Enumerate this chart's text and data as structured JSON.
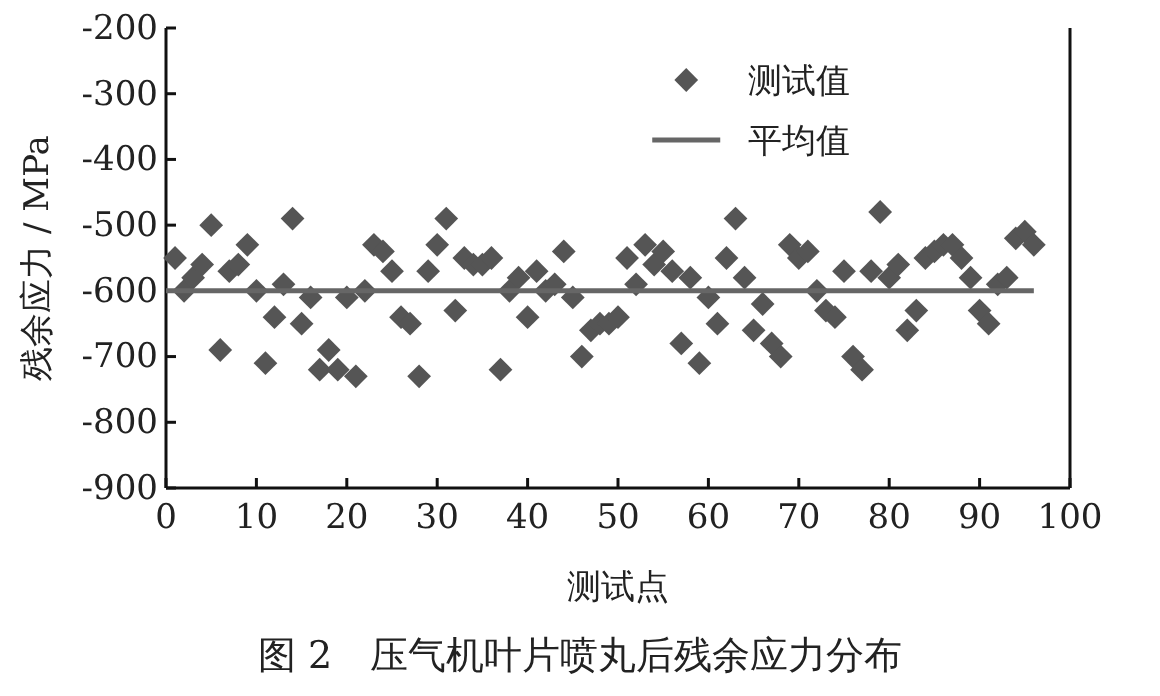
{
  "chart_data": {
    "type": "scatter",
    "title": "图 2　压气机叶片喷丸后残余应力分布",
    "xlabel": "测试点",
    "ylabel": "残余应力 / MPa",
    "xlim": [
      0,
      100
    ],
    "xticks": [
      0,
      10,
      20,
      30,
      40,
      50,
      60,
      70,
      80,
      90,
      100
    ],
    "ylim": [
      -900,
      -200
    ],
    "yticks": [
      -900,
      -800,
      -700,
      -600,
      -500,
      -400,
      -300,
      -200
    ],
    "grid": false,
    "legend": "top right",
    "marker": "diamond",
    "series": [
      {
        "name": "测试值",
        "color": "#555555",
        "x": [
          1,
          2,
          3,
          4,
          5,
          6,
          7,
          8,
          9,
          10,
          11,
          12,
          13,
          14,
          15,
          16,
          17,
          18,
          19,
          20,
          21,
          22,
          23,
          24,
          25,
          26,
          27,
          28,
          29,
          30,
          31,
          32,
          33,
          34,
          35,
          36,
          37,
          38,
          39,
          40,
          41,
          42,
          43,
          44,
          45,
          46,
          47,
          48,
          49,
          50,
          51,
          52,
          53,
          54,
          55,
          56,
          57,
          58,
          59,
          60,
          61,
          62,
          63,
          64,
          65,
          66,
          67,
          68,
          69,
          70,
          71,
          72,
          73,
          74,
          75,
          76,
          77,
          78,
          79,
          80,
          81,
          82,
          83,
          84,
          85,
          86,
          87,
          88,
          89,
          90,
          91,
          92,
          93,
          94,
          95,
          96
        ],
        "values": [
          -550,
          -600,
          -580,
          -560,
          -500,
          -690,
          -570,
          -560,
          -530,
          -600,
          -710,
          -640,
          -590,
          -490,
          -650,
          -610,
          -720,
          -690,
          -720,
          -610,
          -730,
          -600,
          -530,
          -540,
          -570,
          -640,
          -650,
          -730,
          -570,
          -530,
          -490,
          -630,
          -550,
          -560,
          -560,
          -550,
          -720,
          -600,
          -580,
          -640,
          -570,
          -600,
          -590,
          -540,
          -610,
          -700,
          -660,
          -650,
          -650,
          -640,
          -550,
          -590,
          -530,
          -560,
          -540,
          -570,
          -680,
          -580,
          -710,
          -610,
          -650,
          -550,
          -490,
          -580,
          -660,
          -620,
          -680,
          -700,
          -530,
          -550,
          -540,
          -600,
          -630,
          -640,
          -570,
          -700,
          -720,
          -570,
          -480,
          -580,
          -560,
          -660,
          -630,
          -550,
          -540,
          -530,
          -530,
          -550,
          -580,
          -630,
          -650,
          -590,
          -580,
          -520,
          -510,
          -530
        ]
      },
      {
        "name": "平均值",
        "type": "line",
        "color": "#666666",
        "marker": "none",
        "line_style": "solid",
        "x": [
          0,
          96
        ],
        "values": [
          -600,
          -600
        ]
      }
    ]
  }
}
